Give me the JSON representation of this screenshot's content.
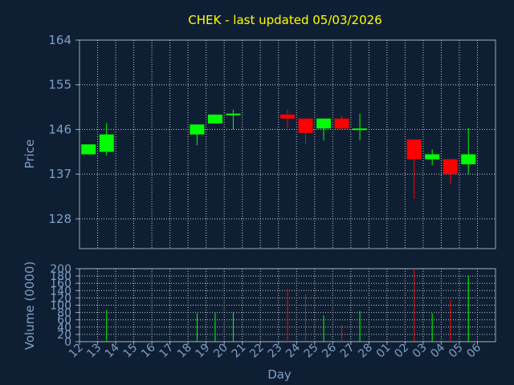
{
  "title": "CHEK - last updated 05/03/2026",
  "colors": {
    "background": "#0f1f33",
    "up": "#00ff00",
    "down": "#ff0000",
    "title": "#ffff00",
    "axis_text": "#7f9fc6",
    "frame": "#9aa8b8",
    "grid": "#c8c8c8"
  },
  "chart_data": [
    {
      "type": "candlestick",
      "title": "CHEK - last updated 05/03/2026",
      "ylabel": "Price",
      "ylim": [
        122,
        164
      ],
      "yticks": [
        128,
        137,
        146,
        155,
        164
      ],
      "grid": true,
      "categories": [
        "12",
        "13",
        "14",
        "15",
        "16",
        "17",
        "18",
        "19",
        "20",
        "21",
        "22",
        "23",
        "24",
        "25",
        "26",
        "27",
        "28",
        "01",
        "02",
        "03",
        "04",
        "05",
        "06"
      ],
      "candles": [
        {
          "day": "12",
          "open": 141,
          "close": 143,
          "high": 143,
          "low": 141
        },
        {
          "day": "13",
          "open": 141.5,
          "close": 145,
          "high": 147.3,
          "low": 140.8
        },
        {
          "day": "18",
          "open": 145,
          "close": 147,
          "high": 147,
          "low": 142.8
        },
        {
          "day": "19",
          "open": 147.2,
          "close": 149,
          "high": 149,
          "low": 147.2
        },
        {
          "day": "20",
          "open": 149,
          "close": 149.2,
          "high": 150,
          "low": 146
        },
        {
          "day": "23",
          "open": 149,
          "close": 148.2,
          "high": 150,
          "low": 146.3
        },
        {
          "day": "24",
          "open": 148.2,
          "close": 145.3,
          "high": 148.2,
          "low": 143
        },
        {
          "day": "25",
          "open": 146.2,
          "close": 148.2,
          "high": 148.2,
          "low": 143.8
        },
        {
          "day": "26",
          "open": 148.2,
          "close": 146.2,
          "high": 148.8,
          "low": 146.2
        },
        {
          "day": "27",
          "open": 146,
          "close": 146.2,
          "high": 149.2,
          "low": 143.8
        },
        {
          "day": "02",
          "open": 144,
          "close": 140,
          "high": 144,
          "low": 132
        },
        {
          "day": "03",
          "open": 140,
          "close": 141,
          "high": 142,
          "low": 138.8
        },
        {
          "day": "04",
          "open": 140,
          "close": 137,
          "high": 140,
          "low": 135
        },
        {
          "day": "05",
          "open": 139,
          "close": 141,
          "high": 146.3,
          "low": 137
        }
      ]
    },
    {
      "type": "bar",
      "xlabel": "Day",
      "ylabel": "Volume (0000)",
      "ylim": [
        0,
        200
      ],
      "yticks": [
        0,
        20,
        40,
        60,
        80,
        100,
        120,
        140,
        160,
        180,
        200
      ],
      "grid": true,
      "categories": [
        "12",
        "13",
        "14",
        "15",
        "16",
        "17",
        "18",
        "19",
        "20",
        "21",
        "22",
        "23",
        "24",
        "25",
        "26",
        "27",
        "28",
        "01",
        "02",
        "03",
        "04",
        "05",
        "06"
      ],
      "bars": [
        {
          "day": "13",
          "value": 87,
          "direction": "up"
        },
        {
          "day": "18",
          "value": 78,
          "direction": "up"
        },
        {
          "day": "19",
          "value": 80,
          "direction": "up"
        },
        {
          "day": "20",
          "value": 80,
          "direction": "up"
        },
        {
          "day": "23",
          "value": 145,
          "direction": "down"
        },
        {
          "day": "24",
          "value": 130,
          "direction": "down"
        },
        {
          "day": "25",
          "value": 72,
          "direction": "up"
        },
        {
          "day": "26",
          "value": 46,
          "direction": "down"
        },
        {
          "day": "27",
          "value": 84,
          "direction": "up"
        },
        {
          "day": "02",
          "value": 200,
          "direction": "down"
        },
        {
          "day": "03",
          "value": 78,
          "direction": "up"
        },
        {
          "day": "04",
          "value": 115,
          "direction": "down"
        },
        {
          "day": "05",
          "value": 180,
          "direction": "up"
        }
      ]
    }
  ]
}
